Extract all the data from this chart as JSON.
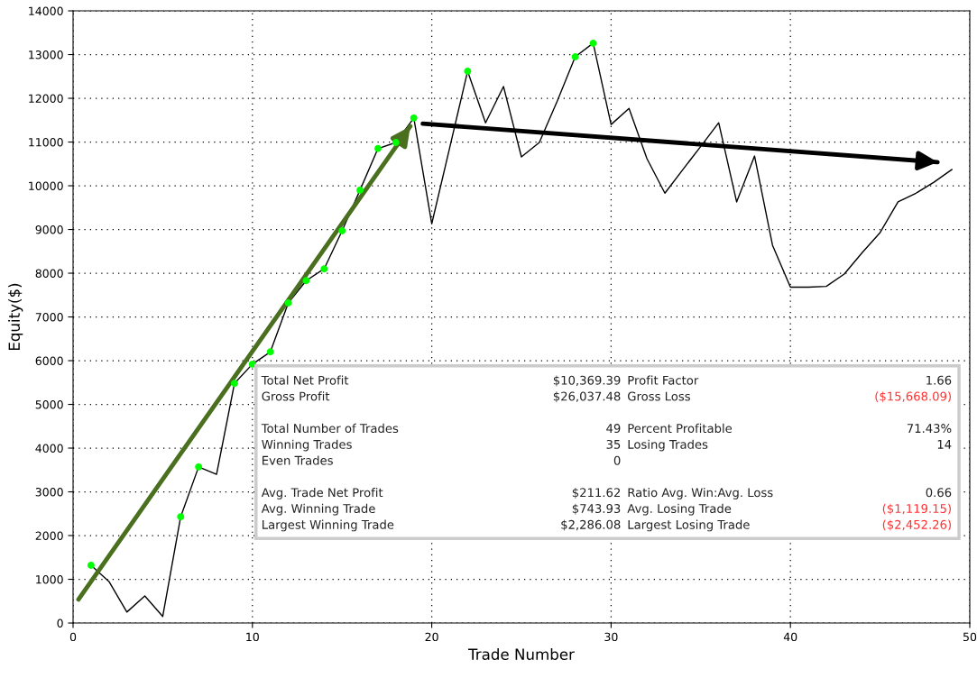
{
  "chart_data": {
    "type": "line",
    "xlabel": "Trade Number",
    "ylabel": "Equity($)",
    "xlim": [
      0,
      50
    ],
    "xticks": [
      0,
      10,
      20,
      30,
      40,
      50
    ],
    "ylim": [
      0,
      14000
    ],
    "yticks": [
      0,
      1000,
      2000,
      3000,
      4000,
      5000,
      6000,
      7000,
      8000,
      9000,
      10000,
      11000,
      12000,
      13000,
      14000
    ],
    "grid": true,
    "marker": "none",
    "line_style": "solid",
    "series": [
      {
        "color": "#000000",
        "x": [
          1,
          2,
          3,
          4,
          5,
          6,
          7,
          8,
          9,
          10,
          11,
          12,
          13,
          14,
          15,
          16,
          17,
          18,
          19,
          20,
          21,
          22,
          23,
          24,
          25,
          26,
          27,
          28,
          29,
          30,
          31,
          32,
          33,
          34,
          35,
          36,
          37,
          38,
          39,
          40,
          41,
          42,
          43,
          44,
          45,
          46,
          47,
          48,
          49
        ],
        "values": [
          1320,
          950,
          250,
          620,
          150,
          2430,
          3570,
          3400,
          5480,
          5920,
          6200,
          7320,
          7830,
          8100,
          8970,
          9900,
          10850,
          10990,
          11550,
          9130,
          10870,
          12620,
          11440,
          12270,
          10660,
          10990,
          11940,
          12950,
          13260,
          11400,
          11770,
          10620,
          9830,
          10370,
          10900,
          11440,
          9630,
          10680,
          8640,
          7680,
          7680,
          7700,
          7980,
          8470,
          8930,
          9630,
          9830,
          10080,
          10370
        ]
      },
      {
        "type": "scatter",
        "color": "#00ff00",
        "marker": "circle",
        "x": [
          1,
          6,
          7,
          9,
          10,
          11,
          12,
          13,
          14,
          15,
          16,
          17,
          18,
          19,
          22,
          28,
          29
        ],
        "values": [
          1320,
          2430,
          3570,
          5480,
          5920,
          6200,
          7320,
          7830,
          8100,
          8970,
          9900,
          10850,
          10990,
          11550,
          12620,
          12950,
          13260
        ]
      },
      {
        "type": "line",
        "color": "#4a6f1e",
        "x": [
          0.3,
          18.8
        ],
        "values": [
          540,
          11360
        ]
      },
      {
        "type": "line",
        "color": "#000000",
        "x": [
          19.5,
          48.2
        ],
        "values": [
          11420,
          10540
        ]
      }
    ],
    "annotations": [
      "Total Net Profit",
      "$10,369.39",
      "Profit Factor",
      "1.66",
      "Gross Profit",
      "$26,037.48",
      "Gross Loss",
      "($15,668.09)",
      "Total Number of Trades",
      "49",
      "Percent Profitable",
      "71.43%",
      "Winning Trades",
      "35",
      "Losing Trades",
      "14",
      "Even Trades",
      "0",
      "Avg. Trade Net Profit",
      "$211.62",
      "Ratio Avg. Win:Avg. Loss",
      "0.66",
      "Avg. Winning Trade",
      "$743.93",
      "Avg. Losing Trade",
      "($1,119.15)",
      "Largest Winning Trade",
      "$2,286.08",
      "Largest Losing Trade",
      "($2,452.26)"
    ]
  }
}
